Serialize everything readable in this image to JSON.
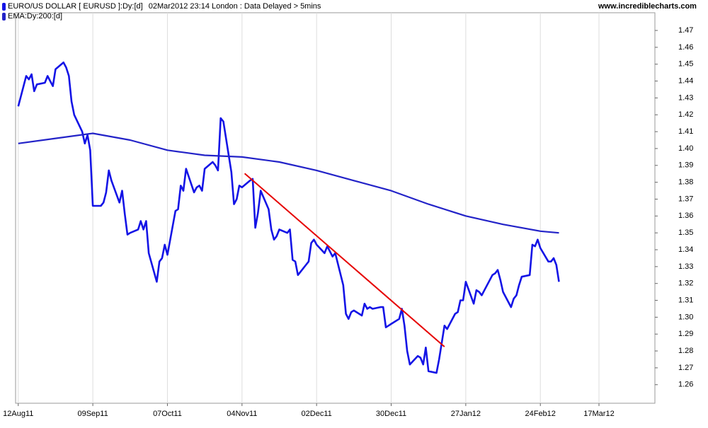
{
  "chart_data": {
    "type": "line",
    "subtitle": "02Mar2012 23:14 London : Data Delayed > 5mins",
    "source": "www.incrediblecharts.com",
    "grid": true,
    "xlim": [
      "2011-08-11",
      "2012-04-07"
    ],
    "xticks": [
      {
        "value": "2011-08-12",
        "label": "12Aug11"
      },
      {
        "value": "2011-09-09",
        "label": "09Sep11"
      },
      {
        "value": "2011-10-07",
        "label": "07Oct11"
      },
      {
        "value": "2011-11-04",
        "label": "04Nov11"
      },
      {
        "value": "2011-12-02",
        "label": "02Dec11"
      },
      {
        "value": "2011-12-30",
        "label": "30Dec11"
      },
      {
        "value": "2012-01-27",
        "label": "27Jan12"
      },
      {
        "value": "2012-02-24",
        "label": "24Feb12"
      },
      {
        "value": "2012-03-17",
        "label": "17Mar12"
      }
    ],
    "ylim": [
      1.249,
      1.4805
    ],
    "yticks": [
      1.26,
      1.27,
      1.28,
      1.29,
      {
        "value": 1.3,
        "label": "1.30"
      },
      1.31,
      1.32,
      1.33,
      1.34,
      1.35,
      1.36,
      1.37,
      1.38,
      1.39,
      {
        "value": 1.4,
        "label": "1.40"
      },
      1.41,
      1.42,
      1.43,
      1.44,
      1.45,
      1.46,
      1.47
    ],
    "series": [
      {
        "name": "EURO/US DOLLAR [ EURUSD ]:Dy:[d]",
        "color": "#1414e6",
        "x": [
          "2011-08-12",
          "2011-08-15",
          "2011-08-16",
          "2011-08-17",
          "2011-08-18",
          "2011-08-19",
          "2011-08-22",
          "2011-08-23",
          "2011-08-24",
          "2011-08-25",
          "2011-08-26",
          "2011-08-29",
          "2011-08-30",
          "2011-08-31",
          "2011-09-01",
          "2011-09-02",
          "2011-09-05",
          "2011-09-06",
          "2011-09-07",
          "2011-09-08",
          "2011-09-09",
          "2011-09-12",
          "2011-09-13",
          "2011-09-14",
          "2011-09-15",
          "2011-09-16",
          "2011-09-19",
          "2011-09-20",
          "2011-09-21",
          "2011-09-22",
          "2011-09-23",
          "2011-09-26",
          "2011-09-27",
          "2011-09-28",
          "2011-09-29",
          "2011-09-30",
          "2011-10-03",
          "2011-10-04",
          "2011-10-05",
          "2011-10-06",
          "2011-10-07",
          "2011-10-10",
          "2011-10-11",
          "2011-10-12",
          "2011-10-13",
          "2011-10-14",
          "2011-10-17",
          "2011-10-18",
          "2011-10-19",
          "2011-10-20",
          "2011-10-21",
          "2011-10-24",
          "2011-10-25",
          "2011-10-26",
          "2011-10-27",
          "2011-10-28",
          "2011-10-31",
          "2011-11-01",
          "2011-11-02",
          "2011-11-03",
          "2011-11-04",
          "2011-11-07",
          "2011-11-08",
          "2011-11-09",
          "2011-11-10",
          "2011-11-11",
          "2011-11-14",
          "2011-11-15",
          "2011-11-16",
          "2011-11-17",
          "2011-11-18",
          "2011-11-21",
          "2011-11-22",
          "2011-11-23",
          "2011-11-24",
          "2011-11-25",
          "2011-11-28",
          "2011-11-29",
          "2011-11-30",
          "2011-12-01",
          "2011-12-02",
          "2011-12-05",
          "2011-12-06",
          "2011-12-07",
          "2011-12-08",
          "2011-12-09",
          "2011-12-12",
          "2011-12-13",
          "2011-12-14",
          "2011-12-15",
          "2011-12-16",
          "2011-12-19",
          "2011-12-20",
          "2011-12-21",
          "2011-12-22",
          "2011-12-23",
          "2011-12-26",
          "2011-12-27",
          "2011-12-28",
          "2011-12-29",
          "2011-12-30",
          "2012-01-02",
          "2012-01-03",
          "2012-01-04",
          "2012-01-05",
          "2012-01-06",
          "2012-01-09",
          "2012-01-10",
          "2012-01-11",
          "2012-01-12",
          "2012-01-13",
          "2012-01-16",
          "2012-01-17",
          "2012-01-18",
          "2012-01-19",
          "2012-01-20",
          "2012-01-23",
          "2012-01-24",
          "2012-01-25",
          "2012-01-26",
          "2012-01-27",
          "2012-01-30",
          "2012-01-31",
          "2012-02-01",
          "2012-02-02",
          "2012-02-03",
          "2012-02-06",
          "2012-02-07",
          "2012-02-08",
          "2012-02-09",
          "2012-02-10",
          "2012-02-13",
          "2012-02-14",
          "2012-02-15",
          "2012-02-16",
          "2012-02-17",
          "2012-02-20",
          "2012-02-21",
          "2012-02-22",
          "2012-02-23",
          "2012-02-24",
          "2012-02-27",
          "2012-02-28",
          "2012-02-29",
          "2012-03-01",
          "2012-03-02"
        ],
        "values": [
          1.425,
          1.443,
          1.441,
          1.444,
          1.434,
          1.438,
          1.439,
          1.443,
          1.44,
          1.437,
          1.447,
          1.451,
          1.448,
          1.443,
          1.428,
          1.42,
          1.41,
          1.403,
          1.408,
          1.399,
          1.366,
          1.366,
          1.368,
          1.374,
          1.387,
          1.381,
          1.368,
          1.375,
          1.361,
          1.349,
          1.35,
          1.352,
          1.357,
          1.352,
          1.357,
          1.338,
          1.321,
          1.333,
          1.335,
          1.343,
          1.337,
          1.363,
          1.364,
          1.378,
          1.375,
          1.388,
          1.374,
          1.377,
          1.378,
          1.375,
          1.388,
          1.392,
          1.39,
          1.387,
          1.418,
          1.416,
          1.386,
          1.367,
          1.37,
          1.378,
          1.377,
          1.381,
          1.382,
          1.353,
          1.362,
          1.375,
          1.364,
          1.352,
          1.346,
          1.348,
          1.352,
          1.35,
          1.352,
          1.334,
          1.333,
          1.325,
          1.331,
          1.333,
          1.344,
          1.346,
          1.343,
          1.338,
          1.342,
          1.339,
          1.336,
          1.338,
          1.319,
          1.302,
          1.299,
          1.303,
          1.304,
          1.301,
          1.308,
          1.305,
          1.306,
          1.305,
          1.306,
          1.306,
          1.294,
          1.295,
          1.296,
          1.299,
          1.305,
          1.295,
          1.28,
          1.272,
          1.277,
          1.276,
          1.272,
          1.282,
          1.268,
          1.267,
          1.275,
          1.285,
          1.295,
          1.293,
          1.302,
          1.303,
          1.31,
          1.31,
          1.321,
          1.308,
          1.316,
          1.315,
          1.313,
          1.316,
          1.325,
          1.326,
          1.328,
          1.322,
          1.315,
          1.306,
          1.311,
          1.313,
          1.319,
          1.324,
          1.325,
          1.343,
          1.342,
          1.346,
          1.341,
          1.333,
          1.333,
          1.335,
          1.331,
          1.321
        ]
      },
      {
        "name": "EMA:Dy:200:[d]",
        "color": "#2323c8",
        "x": [
          "2011-08-12",
          "2011-08-26",
          "2011-09-09",
          "2011-09-23",
          "2011-10-07",
          "2011-10-21",
          "2011-11-04",
          "2011-11-18",
          "2011-12-02",
          "2011-12-16",
          "2011-12-30",
          "2012-01-13",
          "2012-01-27",
          "2012-02-10",
          "2012-02-24",
          "2012-03-02"
        ],
        "values": [
          1.403,
          1.406,
          1.409,
          1.405,
          1.399,
          1.396,
          1.395,
          1.392,
          1.387,
          1.381,
          1.375,
          1.367,
          1.36,
          1.355,
          1.351,
          1.35
        ]
      }
    ],
    "trendline": {
      "color": "#e60000",
      "x": [
        "2011-11-05",
        "2012-01-19"
      ],
      "values": [
        1.3852,
        1.2825
      ]
    }
  }
}
